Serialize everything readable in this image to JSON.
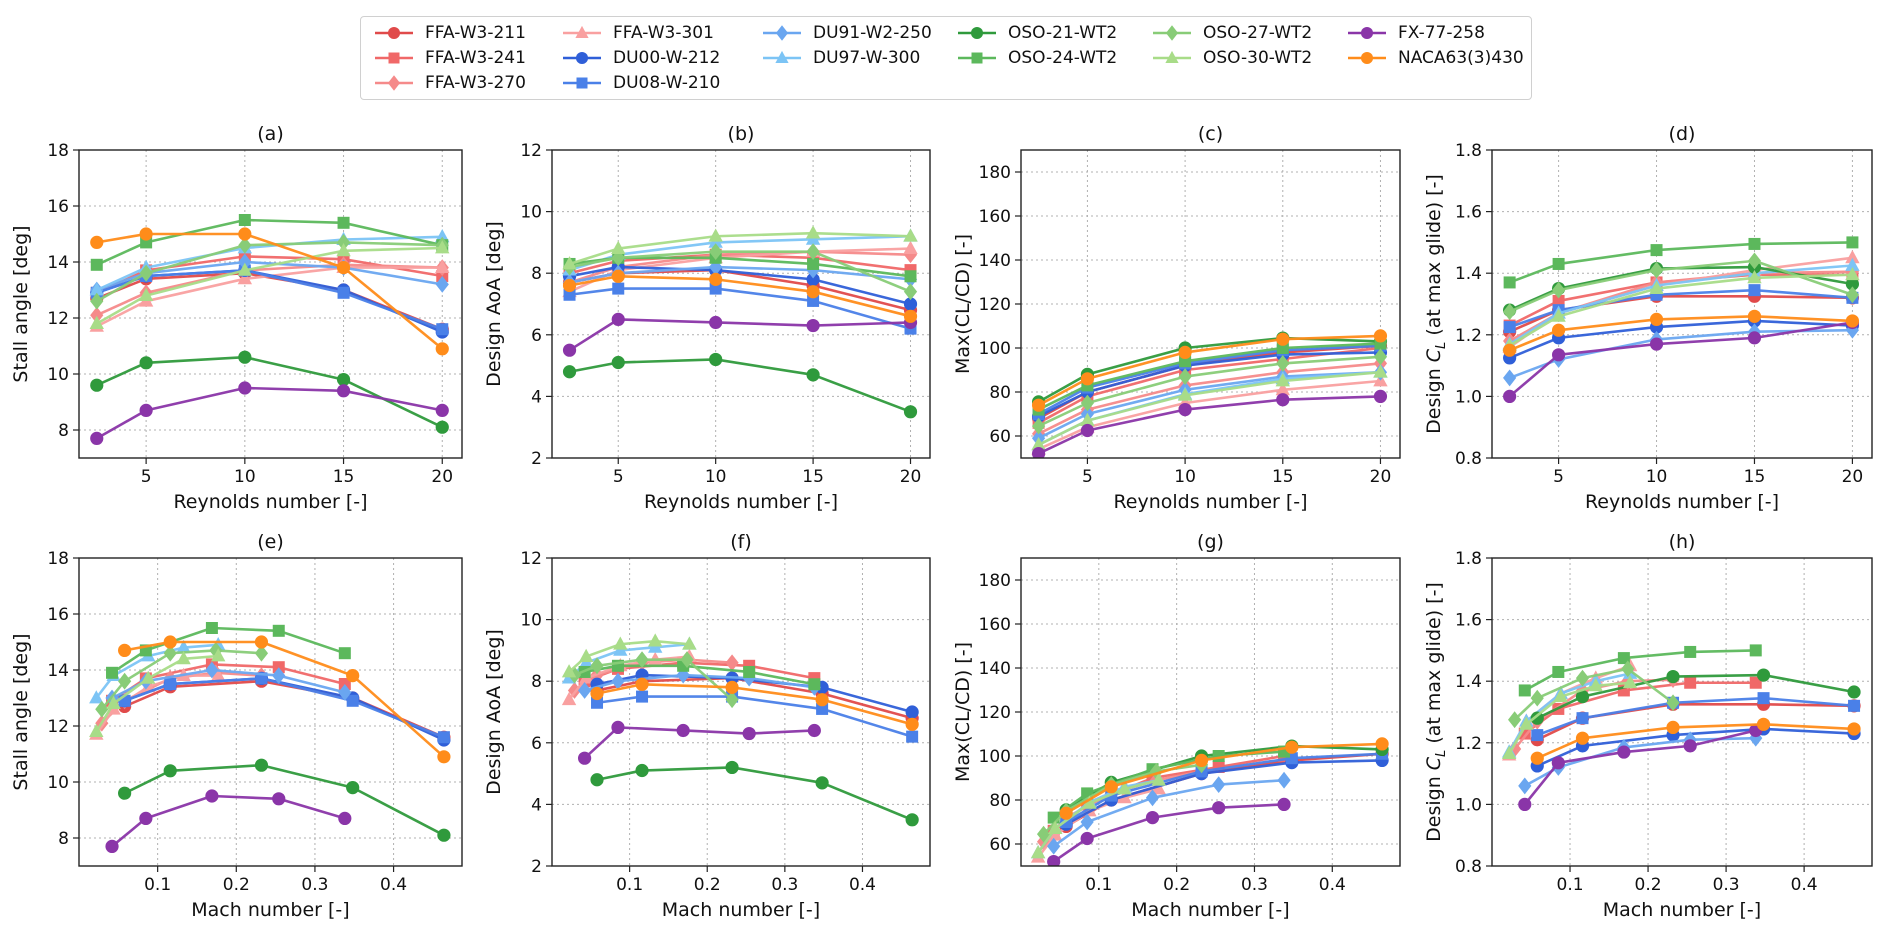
{
  "chart_data": {
    "type": "line",
    "reynolds": [
      2.5,
      5,
      10,
      15,
      20
    ],
    "legend": {
      "placement": "top-center",
      "columns": 6
    },
    "series": [
      {
        "name": "FFA-W3-211",
        "color": "#e04a4a",
        "marker": "circle",
        "mach": [
          0.058,
          0.116,
          0.232,
          0.348,
          0.464
        ],
        "stall": [
          12.7,
          13.4,
          13.6,
          13.0,
          11.6
        ],
        "aoa": [
          7.7,
          8.0,
          8.1,
          7.6,
          6.8
        ],
        "glide": [
          68,
          80,
          92,
          98,
          101
        ],
        "cl": [
          1.21,
          1.28,
          1.325,
          1.325,
          1.32
        ]
      },
      {
        "name": "FFA-W3-241",
        "color": "#f06868",
        "marker": "square",
        "mach": [
          0.042,
          0.085,
          0.169,
          0.254,
          0.338
        ],
        "stall": [
          12.9,
          13.7,
          14.2,
          14.1,
          13.5
        ],
        "aoa": [
          8.0,
          8.4,
          8.6,
          8.5,
          8.1
        ],
        "glide": [
          66,
          78,
          90,
          95,
          100
        ],
        "cl": [
          1.23,
          1.31,
          1.37,
          1.395,
          1.395
        ]
      },
      {
        "name": "FFA-W3-270",
        "color": "#f58a8a",
        "marker": "diamond",
        "mach": [
          0.029,
          0.058,
          0.116,
          0.174,
          0.232
        ],
        "stall": [
          12.1,
          12.9,
          13.7,
          13.9,
          13.8
        ],
        "aoa": [
          7.7,
          8.2,
          8.6,
          8.7,
          8.6
        ],
        "glide": [
          61,
          72,
          83,
          89,
          93
        ],
        "cl": [
          1.18,
          1.27,
          1.37,
          1.4,
          1.405
        ]
      },
      {
        "name": "FFA-W3-301",
        "color": "#f9a0a0",
        "marker": "triangle",
        "mach": [
          0.022,
          0.044,
          0.088,
          0.133,
          0.177
        ],
        "stall": [
          11.7,
          12.6,
          13.4,
          13.8,
          13.8
        ],
        "aoa": [
          7.4,
          8.1,
          8.5,
          8.7,
          8.8
        ],
        "glide": [
          54,
          64,
          75,
          81,
          85
        ],
        "cl": [
          1.16,
          1.27,
          1.36,
          1.41,
          1.45
        ]
      },
      {
        "name": "DU00-W-212",
        "color": "#2f5fd8",
        "marker": "circle",
        "mach": [
          0.058,
          0.116,
          0.232,
          0.348,
          0.464
        ],
        "stall": [
          12.9,
          13.5,
          13.7,
          13.0,
          11.5
        ],
        "aoa": [
          7.9,
          8.2,
          8.1,
          7.8,
          7.0
        ],
        "glide": [
          69,
          80,
          92,
          97,
          98
        ],
        "cl": [
          1.125,
          1.19,
          1.225,
          1.245,
          1.23
        ]
      },
      {
        "name": "DU08-W-210",
        "color": "#4a80e8",
        "marker": "square",
        "mach": [
          0.058,
          0.116,
          0.232,
          0.348,
          0.464
        ],
        "stall": [
          12.9,
          13.5,
          13.7,
          12.9,
          11.6
        ],
        "aoa": [
          7.3,
          7.5,
          7.5,
          7.1,
          6.2
        ],
        "glide": [
          70,
          82,
          93,
          99,
          101
        ],
        "cl": [
          1.225,
          1.28,
          1.33,
          1.345,
          1.32
        ]
      },
      {
        "name": "DU91-W2-250",
        "color": "#6aa6f0",
        "marker": "diamond",
        "mach": [
          0.042,
          0.085,
          0.169,
          0.254,
          0.338
        ],
        "stall": [
          13.0,
          13.6,
          14.0,
          13.8,
          13.2
        ],
        "aoa": [
          7.7,
          8.0,
          8.2,
          8.1,
          7.8
        ],
        "glide": [
          59,
          70,
          81,
          87,
          89
        ],
        "cl": [
          1.06,
          1.12,
          1.185,
          1.21,
          1.215
        ]
      },
      {
        "name": "DU97-W-300",
        "color": "#7cc4f5",
        "marker": "triangle",
        "mach": [
          0.022,
          0.044,
          0.088,
          0.133,
          0.177
        ],
        "stall": [
          13.0,
          13.8,
          14.5,
          14.8,
          14.9
        ],
        "aoa": [
          8.1,
          8.6,
          9.0,
          9.1,
          9.2
        ],
        "glide": [
          56,
          67,
          79,
          86,
          89
        ],
        "cl": [
          1.17,
          1.27,
          1.36,
          1.4,
          1.425
        ]
      },
      {
        "name": "OSO-21-WT2",
        "color": "#2f9a3c",
        "marker": "circle",
        "mach": [
          0.058,
          0.116,
          0.232,
          0.348,
          0.464
        ],
        "stall": [
          9.6,
          10.4,
          10.6,
          9.8,
          8.1
        ],
        "aoa": [
          4.8,
          5.1,
          5.2,
          4.7,
          3.5
        ],
        "glide": [
          75.5,
          88,
          100,
          104.5,
          103
        ],
        "cl": [
          1.28,
          1.35,
          1.415,
          1.42,
          1.365
        ]
      },
      {
        "name": "OSO-24-WT2",
        "color": "#5cb85c",
        "marker": "square",
        "mach": [
          0.042,
          0.085,
          0.169,
          0.254,
          0.338
        ],
        "stall": [
          13.9,
          14.7,
          15.5,
          15.4,
          14.6
        ],
        "aoa": [
          8.3,
          8.5,
          8.5,
          8.3,
          7.9
        ],
        "glide": [
          72,
          83,
          94,
          100,
          102
        ],
        "cl": [
          1.37,
          1.43,
          1.475,
          1.495,
          1.5
        ]
      },
      {
        "name": "OSO-27-WT2",
        "color": "#88cc77",
        "marker": "diamond",
        "mach": [
          0.029,
          0.058,
          0.116,
          0.174,
          0.232
        ],
        "stall": [
          12.6,
          13.6,
          14.6,
          14.7,
          14.6
        ],
        "aoa": [
          8.2,
          8.5,
          8.7,
          8.7,
          7.4
        ],
        "glide": [
          64.5,
          75,
          87,
          93,
          96
        ],
        "cl": [
          1.275,
          1.345,
          1.41,
          1.44,
          1.33
        ]
      },
      {
        "name": "OSO-30-WT2",
        "color": "#a8dc88",
        "marker": "triangle",
        "mach": [
          0.022,
          0.044,
          0.088,
          0.133,
          0.177
        ],
        "stall": [
          11.8,
          12.8,
          13.7,
          14.4,
          14.5
        ],
        "aoa": [
          8.3,
          8.8,
          9.2,
          9.3,
          9.2
        ],
        "glide": [
          56,
          67,
          78.5,
          85,
          89
        ],
        "cl": [
          1.165,
          1.26,
          1.35,
          1.385,
          1.395
        ]
      },
      {
        "name": "FX-77-258",
        "color": "#8a35a8",
        "marker": "circle",
        "mach": [
          0.042,
          0.085,
          0.169,
          0.254,
          0.338
        ],
        "stall": [
          7.7,
          8.7,
          9.5,
          9.4,
          8.7
        ],
        "aoa": [
          5.5,
          6.5,
          6.4,
          6.3,
          6.4
        ],
        "glide": [
          52,
          62.5,
          72,
          76.5,
          78
        ],
        "cl": [
          1.0,
          1.135,
          1.17,
          1.19,
          1.24
        ]
      },
      {
        "name": "NACA63(3)430",
        "color": "#ff8c1a",
        "marker": "circle",
        "mach": [
          0.058,
          0.116,
          0.232,
          0.348,
          0.464
        ],
        "stall": [
          14.7,
          15.0,
          15.0,
          13.8,
          10.9
        ],
        "aoa": [
          7.6,
          7.9,
          7.8,
          7.4,
          6.6
        ],
        "glide": [
          74,
          86,
          98,
          104,
          105.5
        ],
        "cl": [
          1.15,
          1.215,
          1.25,
          1.26,
          1.245
        ]
      }
    ],
    "panels": [
      {
        "id": "a",
        "title": "(a)",
        "x": "reynolds",
        "y": "stall",
        "xlabel": "Reynolds number [-]",
        "ylabel": "Stall angle [deg]",
        "xlim": [
          1.6,
          21.0
        ],
        "ylim": [
          7,
          18
        ],
        "xticks": [
          5,
          10,
          15,
          20
        ],
        "yticks": [
          8,
          10,
          12,
          14,
          16,
          18
        ]
      },
      {
        "id": "b",
        "title": "(b)",
        "x": "reynolds",
        "y": "aoa",
        "xlabel": "Reynolds number [-]",
        "ylabel": "Design AoA [deg]",
        "xlim": [
          1.6,
          21.0
        ],
        "ylim": [
          2,
          12
        ],
        "xticks": [
          5,
          10,
          15,
          20
        ],
        "yticks": [
          2,
          4,
          6,
          8,
          10,
          12
        ]
      },
      {
        "id": "c",
        "title": "(c)",
        "x": "reynolds",
        "y": "glide",
        "xlabel": "Reynolds number [-]",
        "ylabel": "Max(CL/CD) [-]",
        "xlim": [
          1.6,
          21.0
        ],
        "ylim": [
          50,
          190
        ],
        "xticks": [
          5,
          10,
          15,
          20
        ],
        "yticks": [
          60,
          80,
          100,
          120,
          140,
          160,
          180
        ]
      },
      {
        "id": "d",
        "title": "(d)",
        "x": "reynolds",
        "y": "cl",
        "xlabel": "Reynolds number [-]",
        "ylabel": "Design C_L (at max glide) [-]",
        "xlim": [
          1.6,
          21.0
        ],
        "ylim": [
          0.8,
          1.8
        ],
        "xticks": [
          5,
          10,
          15,
          20
        ],
        "yticks": [
          0.8,
          1.0,
          1.2,
          1.4,
          1.6,
          1.8
        ]
      },
      {
        "id": "e",
        "title": "(e)",
        "x": "mach",
        "y": "stall",
        "xlabel": "Mach number [-]",
        "ylabel": "Stall angle [deg]",
        "xlim": [
          0.0,
          0.487
        ],
        "ylim": [
          7,
          18
        ],
        "xticks": [
          0.1,
          0.2,
          0.3,
          0.4
        ],
        "yticks": [
          8,
          10,
          12,
          14,
          16,
          18
        ]
      },
      {
        "id": "f",
        "title": "(f)",
        "x": "mach",
        "y": "aoa",
        "xlabel": "Mach number [-]",
        "ylabel": "Design AoA [deg]",
        "xlim": [
          0.0,
          0.487
        ],
        "ylim": [
          2,
          12
        ],
        "xticks": [
          0.1,
          0.2,
          0.3,
          0.4
        ],
        "yticks": [
          2,
          4,
          6,
          8,
          10,
          12
        ]
      },
      {
        "id": "g",
        "title": "(g)",
        "x": "mach",
        "y": "glide",
        "xlabel": "Mach number [-]",
        "ylabel": "Max(CL/CD) [-]",
        "xlim": [
          0.0,
          0.487
        ],
        "ylim": [
          50,
          190
        ],
        "xticks": [
          0.1,
          0.2,
          0.3,
          0.4
        ],
        "yticks": [
          60,
          80,
          100,
          120,
          140,
          160,
          180
        ]
      },
      {
        "id": "h",
        "title": "(h)",
        "x": "mach",
        "y": "cl",
        "xlabel": "Mach number [-]",
        "ylabel": "Design C_L (at max glide) [-]",
        "xlim": [
          0.0,
          0.487
        ],
        "ylim": [
          0.8,
          1.8
        ],
        "xticks": [
          0.1,
          0.2,
          0.3,
          0.4
        ],
        "yticks": [
          0.8,
          1.0,
          1.2,
          1.4,
          1.6,
          1.8
        ]
      }
    ]
  }
}
